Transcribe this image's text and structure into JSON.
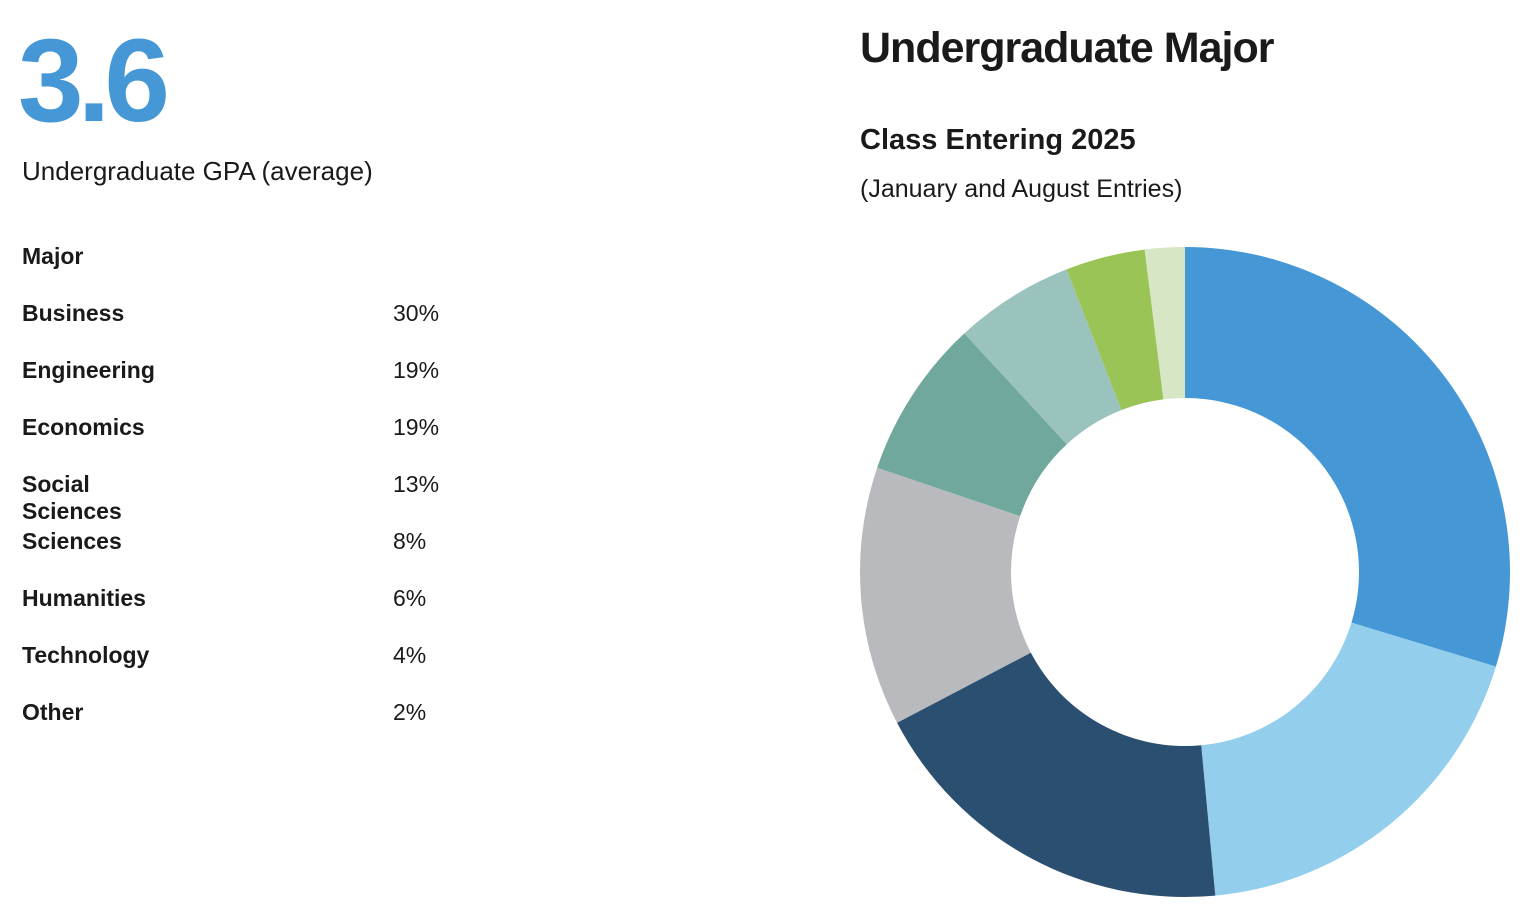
{
  "stat": {
    "value": 3.6,
    "label": "Undergraduate GPA (average)"
  },
  "chart_data": {
    "type": "donut",
    "title": "Undergraduate Major",
    "subtitle": "Class Entering 2025",
    "note": "(January and August Entries)",
    "column_header": "Major",
    "categories": [
      "Business",
      "Engineering",
      "Economics",
      "Social Sciences",
      "Sciences",
      "Humanities",
      "Technology",
      "Other"
    ],
    "values": [
      30,
      19,
      19,
      13,
      8,
      6,
      4,
      2
    ],
    "value_labels": [
      "30%",
      "19%",
      "19%",
      "13%",
      "8%",
      "6%",
      "4%",
      "2%"
    ],
    "colors": [
      "#4598d5",
      "#93ceec",
      "#2b4f70",
      "#b8babd",
      "#71a89d",
      "#9ac3bd",
      "#9bc457",
      "#d7e6c4"
    ]
  }
}
